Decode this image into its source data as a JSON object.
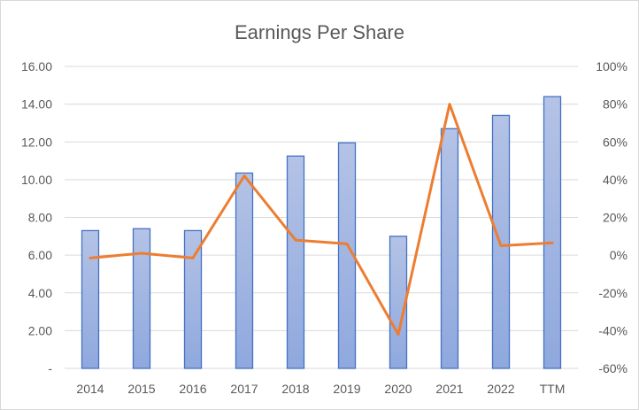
{
  "chart_data": {
    "type": "bar",
    "title": "Earnings Per Share",
    "categories": [
      "2014",
      "2015",
      "2016",
      "2017",
      "2018",
      "2019",
      "2020",
      "2021",
      "2022",
      "TTM"
    ],
    "series": [
      {
        "type": "bar",
        "axis": "left",
        "values": [
          7.3,
          7.4,
          7.3,
          10.35,
          11.25,
          11.95,
          7.0,
          12.7,
          13.4,
          14.4
        ],
        "color": "#4472c4"
      },
      {
        "type": "line",
        "axis": "right",
        "values": [
          -1.5,
          1.0,
          -1.5,
          42,
          8,
          6,
          -42,
          80,
          5,
          6.5
        ],
        "color": "#ed7d31"
      }
    ],
    "y_left": {
      "ylim": [
        0,
        16
      ],
      "ticks": [
        0,
        2,
        4,
        6,
        8,
        10,
        12,
        14,
        16
      ],
      "tick_labels": [
        "-",
        "2.00",
        "4.00",
        "6.00",
        "8.00",
        "10.00",
        "12.00",
        "14.00",
        "16.00"
      ]
    },
    "y_right": {
      "ylim": [
        -60,
        100
      ],
      "ticks": [
        -60,
        -40,
        -20,
        0,
        20,
        40,
        60,
        80,
        100
      ],
      "tick_labels": [
        "-60%",
        "-40%",
        "-20%",
        "0%",
        "20%",
        "40%",
        "60%",
        "80%",
        "100%"
      ]
    },
    "grid": true,
    "legend": "none"
  }
}
